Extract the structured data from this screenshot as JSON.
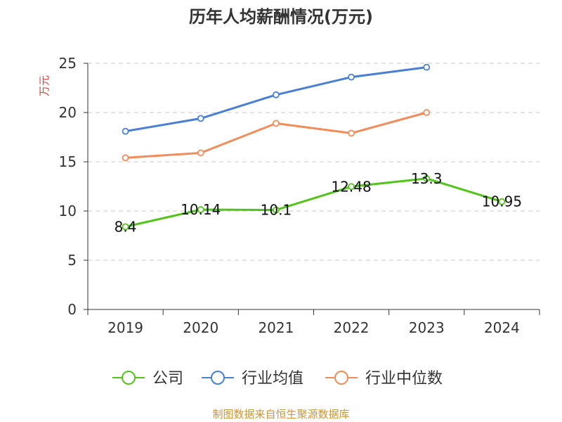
{
  "title": "历年人均薪酬情况(万元)",
  "source_note": "制图数据来自恒生聚源数据库",
  "chart_data": {
    "type": "line",
    "title": "历年人均薪酬情况(万元)",
    "ylabel": "万元",
    "xlabel": "",
    "categories": [
      "2019",
      "2020",
      "2021",
      "2022",
      "2023",
      "2024"
    ],
    "ylim": [
      0,
      25
    ],
    "yticks": [
      0,
      5,
      10,
      15,
      20,
      25
    ],
    "grid": true,
    "legend_position": "bottom",
    "series": [
      {
        "name": "公司",
        "color": "#52c41a",
        "values": [
          8.4,
          10.14,
          10.1,
          12.48,
          13.3,
          10.95
        ],
        "labels": [
          "8.4",
          "10.14",
          "10.1",
          "12.48",
          "13.3",
          "10.95"
        ]
      },
      {
        "name": "行业均值",
        "color": "#4a7fd6",
        "values": [
          18.1,
          19.4,
          21.8,
          23.6,
          24.6,
          null
        ]
      },
      {
        "name": "行业中位数",
        "color": "#f28c5a",
        "values": [
          15.4,
          15.9,
          18.9,
          17.9,
          20.0,
          null
        ]
      }
    ]
  }
}
